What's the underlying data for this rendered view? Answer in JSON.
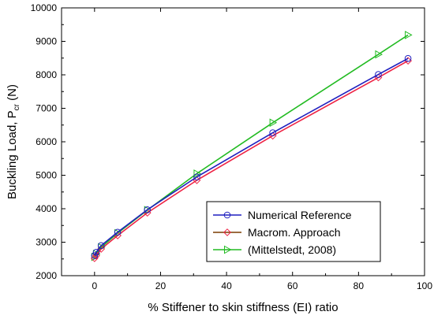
{
  "chart_data": {
    "type": "line",
    "title": "",
    "xlabel": "% Stiffener to skin stiffness (EI) ratio",
    "ylabel": "Buckling Load, P",
    "ylabel_sub": "cr",
    "ylabel_unit": " (N)",
    "xlim": [
      -10,
      100
    ],
    "ylim": [
      2000,
      10000
    ],
    "xticks": [
      0,
      20,
      40,
      60,
      80,
      100
    ],
    "yticks": [
      2000,
      3000,
      4000,
      5000,
      6000,
      7000,
      8000,
      9000,
      10000
    ],
    "grid": false,
    "legend_position": "bottom-right",
    "series": [
      {
        "name": "Numerical Reference",
        "color": "#1f1fbf",
        "marker": "circle",
        "x": [
          0,
          0.5,
          2,
          7,
          16,
          31,
          54,
          86,
          95
        ],
        "y": [
          2600,
          2700,
          2900,
          3300,
          3970,
          4950,
          6270,
          8010,
          8490
        ]
      },
      {
        "name": "Macrom. Approach",
        "color": "#ee2244",
        "line_color": "#ee2244",
        "legend_line_color": "#7a3b00",
        "marker": "diamond",
        "x": [
          0,
          0.5,
          2,
          7,
          16,
          31,
          54,
          86,
          95
        ],
        "y": [
          2520,
          2600,
          2800,
          3200,
          3880,
          4850,
          6180,
          7920,
          8420
        ]
      },
      {
        "name": "(Mittelstedt, 2008)",
        "color": "#22bb22",
        "marker": "triangle-right",
        "x": [
          0,
          0.5,
          2,
          7,
          16,
          31,
          54,
          86,
          95
        ],
        "y": [
          2560,
          2650,
          2850,
          3270,
          3960,
          5050,
          6570,
          8610,
          9190
        ]
      }
    ]
  }
}
